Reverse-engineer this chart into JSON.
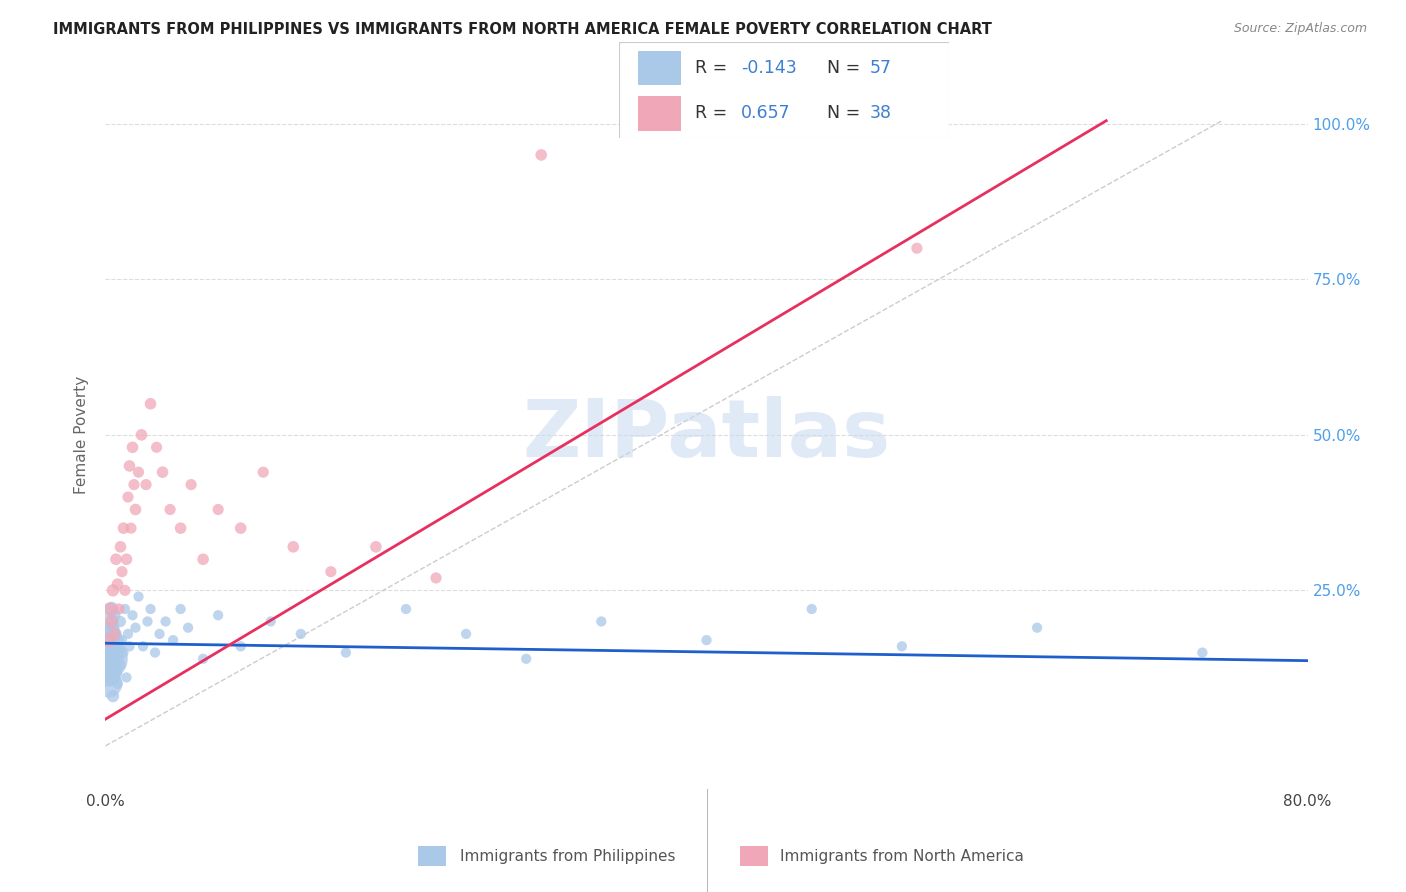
{
  "title": "IMMIGRANTS FROM PHILIPPINES VS IMMIGRANTS FROM NORTH AMERICA FEMALE POVERTY CORRELATION CHART",
  "source": "Source: ZipAtlas.com",
  "ylabel": "Female Poverty",
  "right_ytick_labels": [
    "100.0%",
    "75.0%",
    "50.0%",
    "25.0%"
  ],
  "right_ytick_vals": [
    1.0,
    0.75,
    0.5,
    0.25
  ],
  "xlim": [
    0.0,
    0.8
  ],
  "ylim": [
    -0.07,
    1.07
  ],
  "blue_scatter_color": "#aac8e8",
  "pink_scatter_color": "#f0a8b8",
  "line_blue_color": "#1e5fcc",
  "line_pink_color": "#e83060",
  "line_gray_color": "#cccccc",
  "legend_text_dark": "#333333",
  "legend_text_blue": "#3d80d0",
  "bottom_label_philippines": "Immigrants from Philippines",
  "bottom_label_northamerica": "Immigrants from North America",
  "watermark": "ZIPatlas",
  "phil_x": [
    0.001,
    0.001,
    0.001,
    0.002,
    0.002,
    0.002,
    0.003,
    0.003,
    0.003,
    0.004,
    0.004,
    0.004,
    0.005,
    0.005,
    0.005,
    0.006,
    0.006,
    0.007,
    0.007,
    0.008,
    0.008,
    0.009,
    0.01,
    0.01,
    0.011,
    0.012,
    0.013,
    0.014,
    0.015,
    0.016,
    0.018,
    0.02,
    0.022,
    0.025,
    0.028,
    0.03,
    0.033,
    0.036,
    0.04,
    0.045,
    0.05,
    0.055,
    0.065,
    0.075,
    0.09,
    0.11,
    0.13,
    0.16,
    0.2,
    0.24,
    0.28,
    0.33,
    0.4,
    0.47,
    0.53,
    0.62,
    0.73
  ],
  "phil_y": [
    0.14,
    0.16,
    0.12,
    0.1,
    0.18,
    0.15,
    0.13,
    0.17,
    0.2,
    0.11,
    0.16,
    0.22,
    0.14,
    0.19,
    0.08,
    0.15,
    0.21,
    0.12,
    0.18,
    0.16,
    0.1,
    0.14,
    0.2,
    0.13,
    0.17,
    0.15,
    0.22,
    0.11,
    0.18,
    0.16,
    0.21,
    0.19,
    0.24,
    0.16,
    0.2,
    0.22,
    0.15,
    0.18,
    0.2,
    0.17,
    0.22,
    0.19,
    0.14,
    0.21,
    0.16,
    0.2,
    0.18,
    0.15,
    0.22,
    0.18,
    0.14,
    0.2,
    0.17,
    0.22,
    0.16,
    0.19,
    0.15
  ],
  "phil_sizes": [
    900,
    700,
    500,
    400,
    300,
    250,
    200,
    180,
    160,
    140,
    120,
    110,
    100,
    90,
    80,
    80,
    75,
    70,
    70,
    65,
    60,
    60,
    65,
    60,
    55,
    55,
    55,
    55,
    55,
    55,
    55,
    55,
    55,
    55,
    55,
    55,
    55,
    55,
    55,
    55,
    55,
    55,
    55,
    55,
    55,
    55,
    55,
    55,
    55,
    55,
    55,
    55,
    55,
    55,
    55,
    55,
    55
  ],
  "na_x": [
    0.002,
    0.003,
    0.004,
    0.005,
    0.006,
    0.007,
    0.008,
    0.009,
    0.01,
    0.011,
    0.012,
    0.013,
    0.014,
    0.015,
    0.016,
    0.017,
    0.018,
    0.019,
    0.02,
    0.022,
    0.024,
    0.027,
    0.03,
    0.034,
    0.038,
    0.043,
    0.05,
    0.057,
    0.065,
    0.075,
    0.09,
    0.105,
    0.125,
    0.15,
    0.18,
    0.22,
    0.29,
    0.54
  ],
  "na_y": [
    0.17,
    0.22,
    0.2,
    0.25,
    0.18,
    0.3,
    0.26,
    0.22,
    0.32,
    0.28,
    0.35,
    0.25,
    0.3,
    0.4,
    0.45,
    0.35,
    0.48,
    0.42,
    0.38,
    0.44,
    0.5,
    0.42,
    0.55,
    0.48,
    0.44,
    0.38,
    0.35,
    0.42,
    0.3,
    0.38,
    0.35,
    0.44,
    0.32,
    0.28,
    0.32,
    0.27,
    0.95,
    0.8
  ],
  "na_sizes": [
    100,
    90,
    85,
    80,
    75,
    70,
    70,
    65,
    70,
    65,
    70,
    65,
    70,
    65,
    70,
    65,
    70,
    65,
    70,
    65,
    70,
    65,
    70,
    65,
    70,
    65,
    70,
    65,
    70,
    65,
    70,
    65,
    70,
    65,
    70,
    65,
    70,
    65
  ],
  "blue_trendline_x": [
    0.0,
    0.8
  ],
  "blue_trendline_y": [
    0.165,
    0.137
  ],
  "pink_trendline_x": [
    0.0,
    0.666
  ],
  "pink_trendline_y": [
    0.043,
    1.005
  ],
  "gray_line_x": [
    0.0,
    0.743
  ],
  "gray_line_y": [
    0.0,
    1.005
  ]
}
